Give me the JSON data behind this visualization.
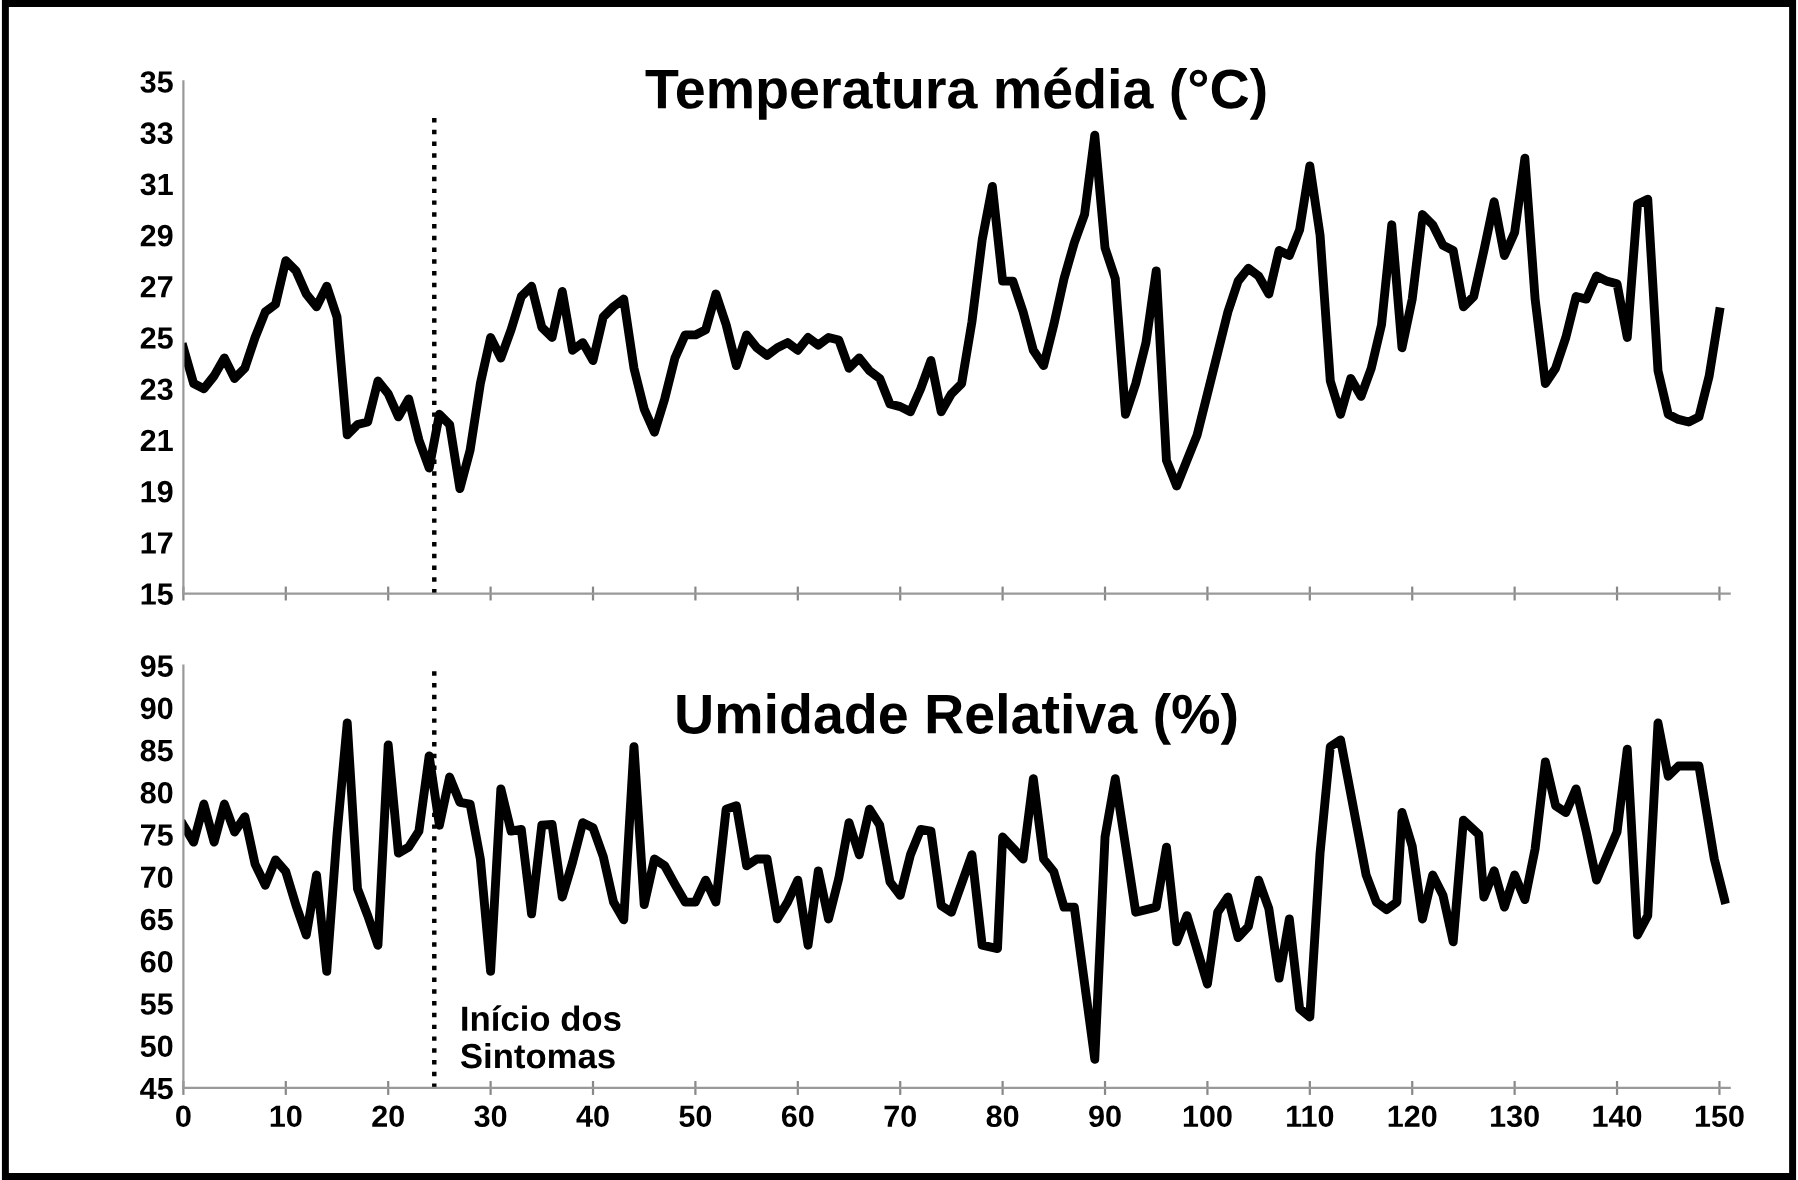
{
  "chart_data": [
    {
      "type": "line",
      "title": "Temperatura média (°C)",
      "x": [
        0,
        1,
        2,
        3,
        4,
        5,
        6,
        7,
        8,
        9,
        10,
        11,
        12,
        13,
        14,
        15,
        16,
        17,
        18,
        19,
        20,
        21,
        22,
        23,
        24,
        25,
        26,
        27,
        28,
        29,
        30,
        31,
        32,
        33,
        34,
        35,
        36,
        37,
        38,
        39,
        40,
        41,
        42,
        43,
        44,
        45,
        46,
        47,
        48,
        49,
        50,
        51,
        52,
        53,
        54,
        55,
        56,
        57,
        58,
        59,
        60,
        61,
        62,
        63,
        64,
        65,
        66,
        67,
        68,
        69,
        70,
        71,
        72,
        73,
        74,
        75,
        76,
        77,
        78,
        79,
        80,
        81,
        82,
        83,
        84,
        85,
        86,
        87,
        88,
        89,
        90,
        91,
        92,
        93,
        94,
        95,
        96,
        97,
        98,
        99,
        100,
        101,
        102,
        103,
        104,
        105,
        106,
        107,
        108,
        109,
        110,
        111,
        112,
        113,
        114,
        115,
        116,
        117,
        118,
        119,
        120,
        121,
        122,
        123,
        124,
        125,
        126,
        127,
        128,
        129,
        130,
        131,
        132,
        133,
        134,
        135,
        136,
        137,
        138,
        139,
        140,
        141,
        142,
        143,
        144,
        145,
        146,
        147,
        148,
        149,
        150
      ],
      "series": [
        {
          "color": "#000000",
          "values": [
            24.6,
            23.2,
            23.0,
            23.5,
            24.2,
            23.4,
            23.8,
            25.0,
            26.0,
            26.3,
            28.0,
            27.6,
            26.7,
            26.2,
            27.0,
            25.8,
            21.2,
            21.6,
            21.7,
            23.3,
            22.8,
            21.9,
            22.6,
            21.0,
            19.9,
            22.0,
            21.6,
            19.1,
            20.6,
            23.2,
            25.0,
            24.2,
            25.3,
            26.6,
            27.0,
            25.4,
            25.0,
            26.8,
            24.5,
            24.8,
            24.1,
            25.8,
            26.2,
            26.5,
            23.8,
            22.2,
            21.3,
            22.6,
            24.2,
            25.1,
            25.1,
            25.3,
            26.7,
            25.5,
            23.9,
            25.1,
            24.6,
            24.3,
            24.6,
            24.8,
            24.5,
            25.0,
            24.7,
            25.0,
            24.9,
            23.8,
            24.2,
            23.7,
            23.4,
            22.4,
            22.3,
            22.1,
            23.0,
            24.1,
            22.1,
            22.8,
            23.2,
            25.6,
            28.8,
            30.9,
            27.2,
            27.2,
            26.0,
            24.5,
            23.9,
            25.5,
            27.3,
            28.7,
            29.8,
            32.9,
            28.5,
            27.3,
            22.0,
            23.2,
            24.8,
            27.6,
            20.2,
            19.2,
            20.2,
            21.2,
            22.8,
            24.4,
            26.0,
            27.2,
            27.7,
            27.4,
            26.7,
            28.4,
            28.2,
            29.2,
            31.7,
            29.0,
            23.3,
            22.0,
            23.4,
            22.7,
            23.8,
            25.5,
            29.4,
            24.6,
            26.5,
            29.8,
            29.4,
            28.6,
            28.4,
            26.2,
            26.6,
            28.4,
            30.3,
            28.2,
            29.1,
            32.0,
            26.5,
            23.2,
            23.8,
            25.0,
            26.6,
            26.5,
            27.4,
            27.2,
            27.1,
            25.0,
            30.2,
            30.4,
            23.7,
            22.0,
            21.8,
            21.7,
            21.9,
            23.5,
            26.0
          ]
        }
      ],
      "xlim": [
        0,
        151
      ],
      "xticks": [
        0,
        10,
        20,
        30,
        40,
        50,
        60,
        70,
        80,
        90,
        100,
        110,
        120,
        130,
        140,
        150
      ],
      "ylim": [
        15,
        35
      ],
      "yticks": [
        15,
        17,
        19,
        21,
        23,
        25,
        27,
        29,
        31,
        33,
        35
      ],
      "tick_labels": "y",
      "grid": false,
      "legend": false,
      "ref_lines": [
        {
          "axis": "x",
          "value": 24.5,
          "color": "#000000",
          "line_style": "dotted"
        }
      ]
    },
    {
      "type": "line",
      "title": "Umidade Relativa (%)",
      "series": [
        {
          "color": "#000000",
          "x": [
            0,
            1,
            2,
            3,
            4,
            5,
            6,
            7,
            8,
            9,
            10,
            11,
            12,
            13,
            14,
            15,
            16,
            17,
            18,
            19,
            20,
            21,
            22,
            23,
            24,
            25,
            26,
            27,
            28,
            29,
            30,
            31,
            32,
            33,
            34,
            35,
            36,
            37,
            38,
            39,
            40,
            41,
            42,
            43,
            44,
            45,
            46,
            47,
            48,
            49,
            50,
            51,
            52,
            53,
            54,
            55,
            56,
            57,
            58,
            59,
            60,
            61,
            62,
            63,
            64,
            65,
            66,
            67,
            68,
            69,
            70,
            71,
            72,
            73,
            74,
            75,
            77,
            78,
            79.5,
            80,
            82,
            83,
            84,
            85,
            86,
            87,
            89,
            90,
            91,
            93,
            95,
            96,
            97,
            98,
            100,
            101,
            102,
            103,
            104,
            105,
            106,
            107,
            108,
            109,
            110,
            111,
            112,
            113,
            115.5,
            116.5,
            117.5,
            118.5,
            119,
            120,
            121,
            122,
            123,
            124,
            125,
            126.5,
            127,
            128,
            129,
            130,
            131,
            132,
            133,
            134,
            135,
            136,
            137,
            138,
            140,
            141,
            142,
            143,
            144,
            145,
            146,
            148,
            149.5,
            150.5
          ],
          "values": [
            76.1,
            74.1,
            78.6,
            74.1,
            78.6,
            75.3,
            77.1,
            71.5,
            69.0,
            72.0,
            70.6,
            66.6,
            63.1,
            70.2,
            58.8,
            75.0,
            88.2,
            68.6,
            65.4,
            61.9,
            85.6,
            72.8,
            73.5,
            75.4,
            84.3,
            76.1,
            81.8,
            78.8,
            78.6,
            72.1,
            58.8,
            80.4,
            75.4,
            75.6,
            65.6,
            76.1,
            76.2,
            67.6,
            71.7,
            76.4,
            75.8,
            72.4,
            67.0,
            64.9,
            85.4,
            66.7,
            72.1,
            71.3,
            69.1,
            67.0,
            67.0,
            69.6,
            67.0,
            78.0,
            78.4,
            71.3,
            72.1,
            72.1,
            65.0,
            67.0,
            69.6,
            61.9,
            70.7,
            65.0,
            69.8,
            76.4,
            72.6,
            78.0,
            76.1,
            69.4,
            67.8,
            72.6,
            75.6,
            75.4,
            66.6,
            65.8,
            72.6,
            61.9,
            61.5,
            74.7,
            72.1,
            81.6,
            72.1,
            70.6,
            66.4,
            66.4,
            48.4,
            74.7,
            81.6,
            65.8,
            66.4,
            73.5,
            62.3,
            65.4,
            57.3,
            65.8,
            67.6,
            62.8,
            64.1,
            69.6,
            66.2,
            58.0,
            65.0,
            54.4,
            53.4,
            72.8,
            85.4,
            86.2,
            70.2,
            67.0,
            66.1,
            67.0,
            77.6,
            73.6,
            65.0,
            70.2,
            67.8,
            62.3,
            76.7,
            75.0,
            67.6,
            70.7,
            66.4,
            70.2,
            67.3,
            73.3,
            83.6,
            78.4,
            77.6,
            80.4,
            75.3,
            69.6,
            75.3,
            85.1,
            63.1,
            65.4,
            88.2,
            81.9,
            83.1,
            83.1,
            72.1,
            67.3
          ]
        }
      ],
      "xlim": [
        0,
        151
      ],
      "xticks": [
        0,
        10,
        20,
        30,
        40,
        50,
        60,
        70,
        80,
        90,
        100,
        110,
        120,
        130,
        140,
        150
      ],
      "ylim": [
        45,
        95
      ],
      "yticks": [
        45,
        50,
        55,
        60,
        65,
        70,
        75,
        80,
        85,
        90,
        95
      ],
      "grid": false,
      "legend": false,
      "ref_lines": [
        {
          "axis": "x",
          "value": 24.5,
          "label": "Início dos\nSintomas",
          "color": "#000000",
          "line_style": "dotted"
        }
      ]
    }
  ]
}
